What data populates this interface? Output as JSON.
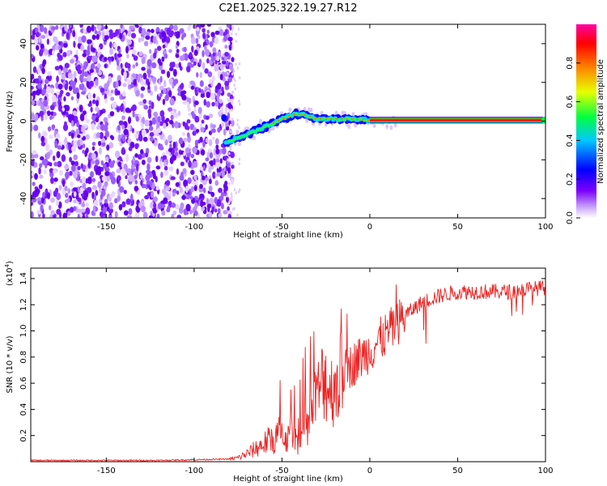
{
  "chart_data": [
    {
      "type": "heatmap",
      "title": "C2E1.2025.322.19.27.R12",
      "xlabel": "Height of straight line (km)",
      "ylabel": "Frequency (Hz)",
      "xlim": [
        -193,
        100
      ],
      "ylim": [
        -50,
        50
      ],
      "xticks": [
        -150,
        -100,
        -50,
        0,
        50,
        100
      ],
      "yticks": [
        -40,
        -20,
        0,
        20,
        40
      ],
      "colorbar": {
        "label": "Normalized spectral amplitude",
        "range": [
          0,
          1
        ],
        "ticks": [
          0.0,
          0.2,
          0.4,
          0.6,
          0.8
        ],
        "colors": [
          "#ffffff",
          "#7a00ff",
          "#0000ff",
          "#00c8ff",
          "#00ff40",
          "#e6ff00",
          "#ff8000",
          "#ff0000",
          "#ff00a0"
        ]
      },
      "noise_region_x": [
        -193,
        -82
      ],
      "signal_trace": [
        {
          "x": -82,
          "y": -11
        },
        {
          "x": -70,
          "y": -7
        },
        {
          "x": -60,
          "y": -3
        },
        {
          "x": -50,
          "y": 1
        },
        {
          "x": -42,
          "y": 4
        },
        {
          "x": -36,
          "y": 3
        },
        {
          "x": -30,
          "y": 1
        },
        {
          "x": -20,
          "y": 1
        },
        {
          "x": -10,
          "y": 1
        },
        {
          "x": 0,
          "y": 0.5
        },
        {
          "x": 100,
          "y": 0.5
        }
      ]
    },
    {
      "type": "line",
      "xlabel": "Height of straight line (km)",
      "ylabel": "SNR (10 * v/v)",
      "yscale_label": "(x10",
      "yscale_exp": "4",
      "yscale_close": ")",
      "xlim": [
        -193,
        100
      ],
      "ylim": [
        0,
        1.48
      ],
      "xticks": [
        -150,
        -100,
        -50,
        0,
        50,
        100
      ],
      "yticks": [
        0.2,
        0.4,
        0.6,
        0.8,
        1.0,
        1.2,
        1.4
      ],
      "series": [
        {
          "name": "SNR",
          "color": "#ee2222",
          "x": [
            -193,
            -120,
            -80,
            -75,
            -70,
            -65,
            -60,
            -55,
            -50,
            -45,
            -40,
            -36,
            -32,
            -30,
            -26,
            -22,
            -20,
            -15,
            -10,
            -5,
            0,
            5,
            10,
            15,
            20,
            30,
            40,
            50,
            60,
            70,
            80,
            90,
            100
          ],
          "y": [
            0.01,
            0.01,
            0.02,
            0.03,
            0.06,
            0.1,
            0.14,
            0.18,
            0.22,
            0.16,
            0.18,
            0.25,
            0.4,
            0.5,
            0.65,
            0.55,
            0.58,
            0.68,
            0.74,
            0.8,
            0.85,
            0.92,
            0.98,
            1.05,
            1.12,
            1.22,
            1.27,
            1.3,
            1.3,
            1.3,
            1.3,
            1.32,
            1.33
          ]
        }
      ]
    }
  ]
}
